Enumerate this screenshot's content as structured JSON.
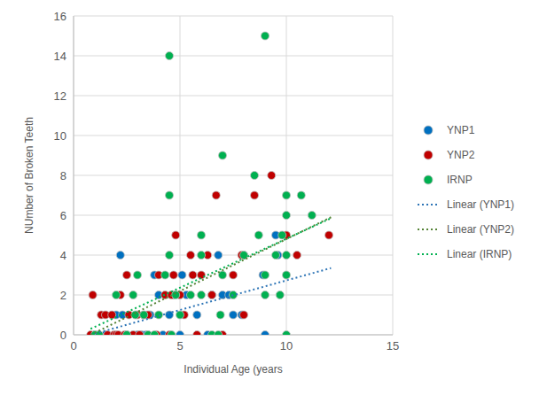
{
  "chart_data": {
    "type": "scatter",
    "x_label": "Individual Age (years",
    "y_label": "NUmber of Broken Teeth",
    "xlim": [
      0,
      15
    ],
    "xticks": [
      0,
      5,
      10,
      15
    ],
    "ylim": [
      0,
      16
    ],
    "yticks": [
      0,
      2,
      4,
      6,
      8,
      10,
      12,
      14,
      16
    ],
    "grid": true,
    "legend": "right",
    "series": [
      {
        "name": "YNP1",
        "type": "scatter",
        "marker": "circle",
        "color": "#0070c0",
        "x": [
          1.0,
          1.5,
          2.0,
          2.2,
          2.3,
          2.5,
          3.0,
          3.2,
          3.4,
          3.5,
          3.6,
          3.8,
          4.0,
          4.2,
          4.5,
          4.7,
          5.0,
          5.1,
          5.3,
          5.8,
          6.3,
          6.5,
          6.8,
          7.0,
          7.3,
          7.5,
          7.9,
          8.0,
          8.9,
          9.0,
          9.5,
          9.6
        ],
        "values": [
          0,
          0,
          1,
          4,
          1,
          0,
          0,
          0,
          0,
          0,
          1,
          3,
          2,
          0,
          1,
          2,
          0,
          3,
          2,
          1,
          0,
          2,
          4,
          2,
          2,
          1,
          1,
          4,
          3,
          0,
          5,
          4
        ]
      },
      {
        "name": "YNP2",
        "type": "scatter",
        "marker": "circle",
        "color": "#c00000",
        "x": [
          0.8,
          0.9,
          1.2,
          1.3,
          1.5,
          1.6,
          1.8,
          1.9,
          2.0,
          2.1,
          2.2,
          2.4,
          2.5,
          2.6,
          2.8,
          3.0,
          3.1,
          3.3,
          3.5,
          3.9,
          4.0,
          4.3,
          4.5,
          4.6,
          4.7,
          4.8,
          5.0,
          5.2,
          5.5,
          5.6,
          5.8,
          6.0,
          6.3,
          6.5,
          6.7,
          7.0,
          7.5,
          7.9,
          8.0,
          8.5,
          9.3,
          10.0,
          10.5,
          12.0
        ],
        "values": [
          0,
          2,
          0,
          1,
          1,
          0,
          1,
          0,
          0,
          0,
          2,
          0,
          3,
          1,
          0,
          1,
          0,
          1,
          1,
          0,
          3,
          2,
          0,
          2,
          3,
          5,
          2,
          1,
          4,
          3,
          0,
          3,
          4,
          2,
          7,
          0,
          3,
          4,
          1,
          7,
          8,
          5,
          4,
          5
        ]
      },
      {
        "name": "IRNP",
        "type": "scatter",
        "marker": "circle",
        "color": "#00b050",
        "x": [
          1.0,
          1.2,
          2.0,
          2.5,
          2.8,
          2.9,
          3.0,
          3.3,
          3.5,
          3.8,
          4.0,
          4.3,
          4.5,
          4.5,
          4.5,
          4.6,
          4.8,
          5.0,
          5.5,
          6.0,
          6.0,
          6.0,
          6.5,
          6.8,
          6.9,
          7.0,
          7.0,
          7.5,
          8.0,
          8.5,
          8.7,
          9.0,
          9.0,
          9.0,
          9.5,
          9.7,
          9.8,
          10.0,
          10.0,
          10.0,
          10.0,
          10.0,
          10.7,
          11.2
        ],
        "values": [
          0,
          0,
          2,
          0,
          2,
          1,
          3,
          1,
          0,
          0,
          1,
          3,
          14,
          7,
          4,
          0,
          2,
          1,
          2,
          5,
          4,
          2,
          0,
          0,
          1,
          9,
          3,
          2,
          4,
          8,
          5,
          15,
          3,
          2,
          4,
          2,
          5,
          7,
          6,
          4,
          3,
          0,
          7,
          6
        ]
      },
      {
        "name": "Linear (YNP1)",
        "type": "line",
        "line_style": "dotted",
        "color": "#2e75b6",
        "x": [
          0.8,
          12.1
        ],
        "values": [
          0.0,
          3.35
        ]
      },
      {
        "name": "Linear (YNP2)",
        "type": "line",
        "line_style": "dotted",
        "color": "#548235",
        "x": [
          0.8,
          12.1
        ],
        "values": [
          0.0,
          5.9
        ]
      },
      {
        "name": "Linear (IRNP)",
        "type": "line",
        "line_style": "dotted",
        "color": "#00b050",
        "x": [
          0.8,
          12.1
        ],
        "values": [
          0.3,
          5.85
        ]
      }
    ]
  }
}
